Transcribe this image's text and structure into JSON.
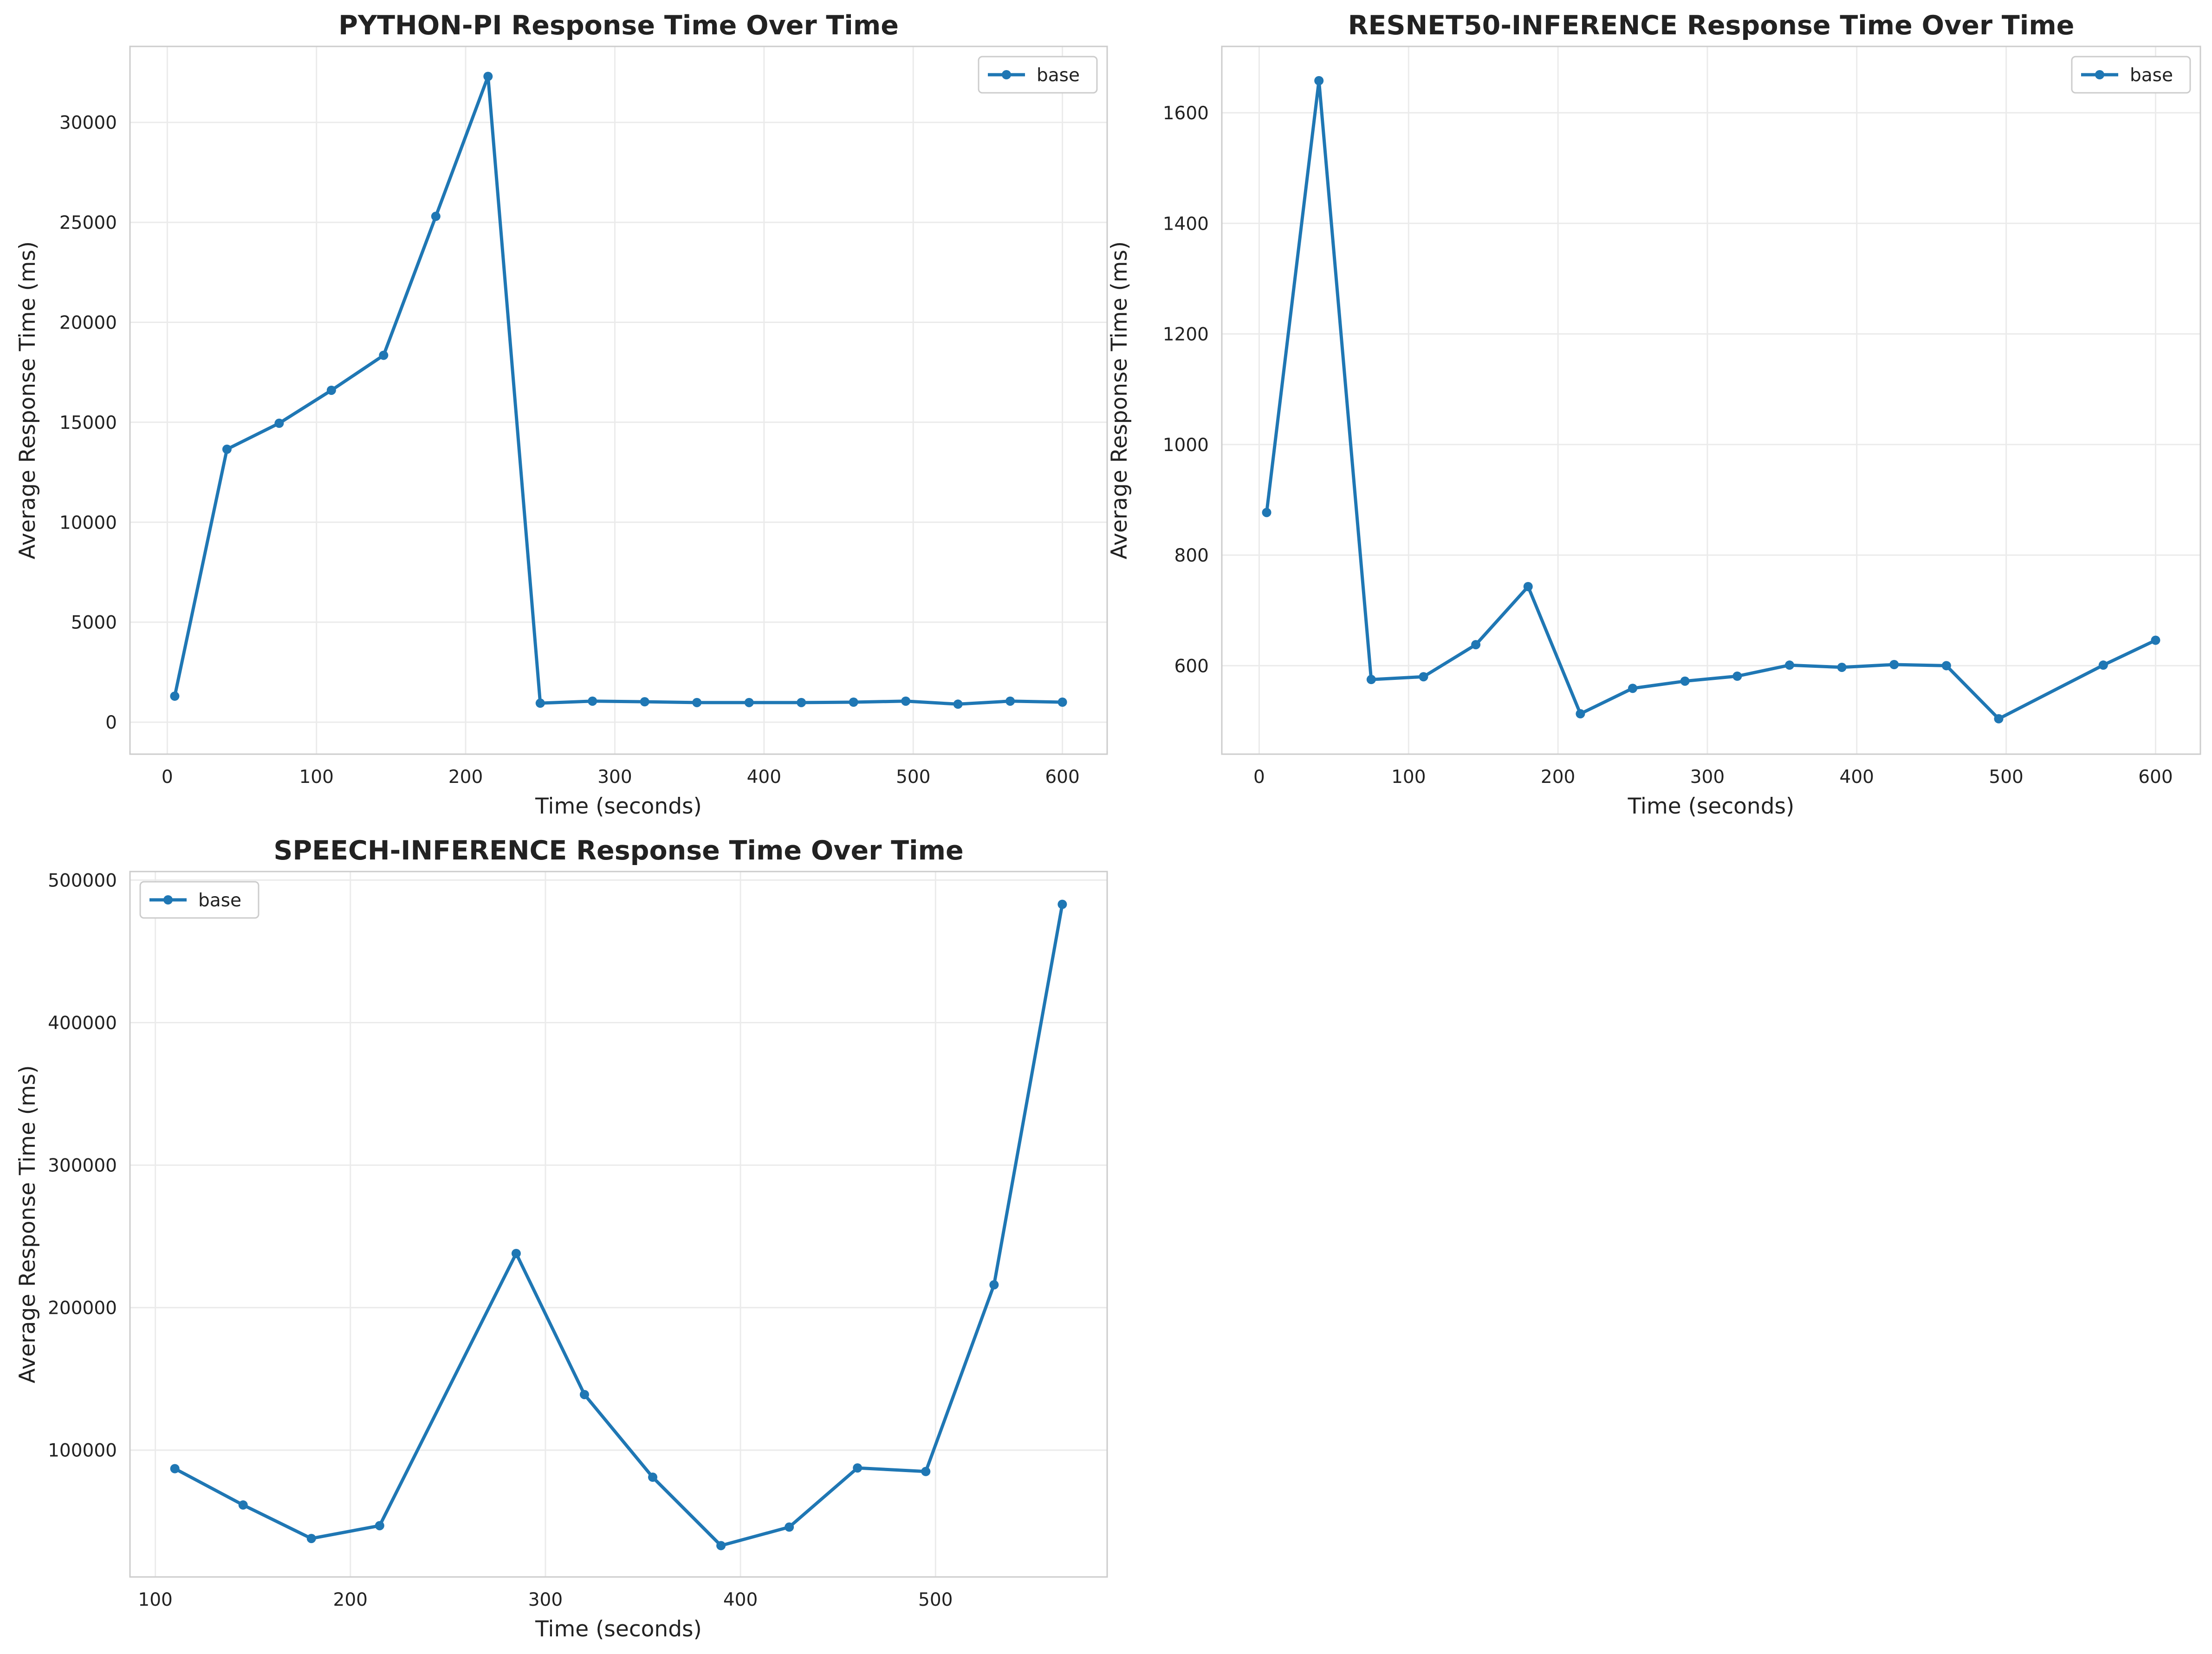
{
  "colors": {
    "line": "#1f77b4",
    "grid": "#ebebeb",
    "frame": "#cccccc",
    "text": "#222222",
    "background": "#ffffff"
  },
  "chart_data": [
    {
      "type": "line",
      "title": "PYTHON-PI Response Time Over Time",
      "xlabel": "Time (seconds)",
      "ylabel": "Average Response Time (ms)",
      "xlim": [
        -25,
        630
      ],
      "ylim": [
        -1600,
        33800
      ],
      "xticks": [
        0,
        100,
        200,
        300,
        400,
        500,
        600
      ],
      "yticks": [
        0,
        5000,
        10000,
        15000,
        20000,
        25000,
        30000
      ],
      "grid": true,
      "legend_position": "top-right",
      "series": [
        {
          "name": "base",
          "x": [
            5,
            40,
            75,
            110,
            145,
            180,
            215,
            250,
            285,
            320,
            355,
            390,
            425,
            460,
            495,
            530,
            565,
            600
          ],
          "y": [
            1300,
            13650,
            14950,
            16600,
            18350,
            25300,
            32300,
            950,
            1050,
            1020,
            980,
            980,
            980,
            1000,
            1050,
            900,
            1050,
            1000
          ]
        }
      ]
    },
    {
      "type": "line",
      "title": "RESNET50-INFERENCE Response Time Over Time",
      "xlabel": "Time (seconds)",
      "ylabel": "Average Response Time (ms)",
      "xlim": [
        -25,
        630
      ],
      "ylim": [
        440,
        1720
      ],
      "xticks": [
        0,
        100,
        200,
        300,
        400,
        500,
        600
      ],
      "yticks": [
        600,
        800,
        1000,
        1200,
        1400,
        1600
      ],
      "grid": true,
      "legend_position": "top-right",
      "series": [
        {
          "name": "base",
          "x": [
            5,
            40,
            75,
            110,
            145,
            180,
            215,
            250,
            285,
            320,
            355,
            390,
            425,
            460,
            495,
            565,
            600
          ],
          "y": [
            877,
            1658,
            575,
            580,
            638,
            743,
            513,
            559,
            572,
            581,
            601,
            597,
            602,
            600,
            504,
            601,
            646
          ]
        }
      ]
    },
    {
      "type": "line",
      "title": "SPEECH-INFERENCE Response Time Over Time",
      "xlabel": "Time (seconds)",
      "ylabel": "Average Response Time (ms)",
      "xlim": [
        87,
        588
      ],
      "ylim": [
        11000,
        506000
      ],
      "xticks": [
        100,
        200,
        300,
        400,
        500
      ],
      "yticks": [
        100000,
        200000,
        300000,
        400000,
        500000
      ],
      "grid": true,
      "legend_position": "top-left",
      "series": [
        {
          "name": "base",
          "x": [
            110,
            145,
            180,
            215,
            285,
            320,
            355,
            390,
            425,
            460,
            495,
            530,
            565
          ],
          "y": [
            87000,
            61500,
            38000,
            47000,
            238000,
            139000,
            81000,
            33000,
            46000,
            87500,
            85000,
            216000,
            483000
          ]
        }
      ]
    }
  ]
}
